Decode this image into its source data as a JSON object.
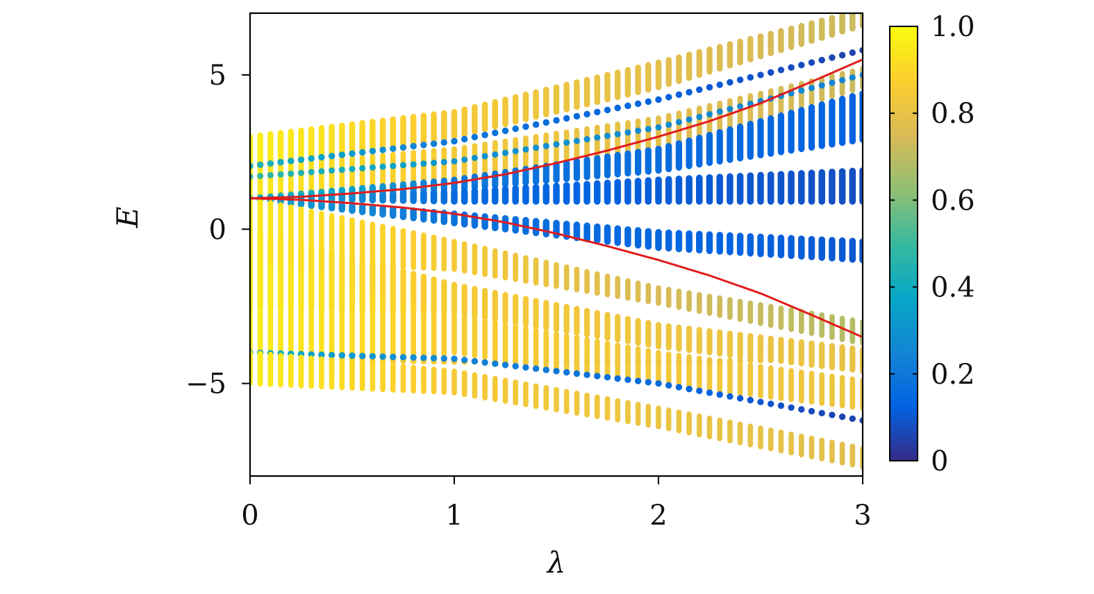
{
  "chart_data": {
    "type": "scatter",
    "xlabel": "λ",
    "ylabel": "E",
    "xlim": [
      0,
      3
    ],
    "ylim": [
      -8,
      7
    ],
    "x_ticks": [
      {
        "value": 0,
        "label": "0"
      },
      {
        "value": 1,
        "label": "1"
      },
      {
        "value": 2,
        "label": "2"
      },
      {
        "value": 3,
        "label": "3"
      }
    ],
    "y_ticks": [
      {
        "value": -5,
        "label": "−5"
      },
      {
        "value": 0,
        "label": "0"
      },
      {
        "value": 5,
        "label": "5"
      }
    ],
    "grid": false,
    "legend": "none",
    "colorbar": {
      "min": 0,
      "max": 1,
      "colormap": "parula",
      "colors": [
        "#352a87",
        "#0363e1",
        "#1485d4",
        "#06a7c6",
        "#38b99e",
        "#92bf73",
        "#d9ba56",
        "#fcce2e",
        "#f9fb0e"
      ],
      "ticks": [
        {
          "value": 0,
          "label": "0"
        },
        {
          "value": 0.2,
          "label": "0.2"
        },
        {
          "value": 0.4,
          "label": "0.4"
        },
        {
          "value": 0.6,
          "label": "0.6"
        },
        {
          "value": 0.8,
          "label": "0.8"
        },
        {
          "value": 1.0,
          "label": "1.0"
        }
      ]
    },
    "lambda_samples": 60,
    "bands": [
      {
        "lo": [
          [
            0,
            2.0
          ],
          [
            1,
            3.0
          ],
          [
            2,
            4.6
          ],
          [
            3,
            6.6
          ]
        ],
        "hi": [
          [
            0,
            3.0
          ],
          [
            1,
            3.8
          ],
          [
            2,
            5.4
          ],
          [
            3,
            7.1
          ]
        ],
        "c": [
          [
            0,
            0.97
          ],
          [
            1,
            0.85
          ],
          [
            3,
            0.72
          ]
        ],
        "fade": 1.0
      },
      {
        "lo": [
          [
            0,
            1.0
          ],
          [
            1,
            1.4
          ],
          [
            2,
            2.6
          ],
          [
            3,
            4.6
          ]
        ],
        "hi": [
          [
            0,
            2.0
          ],
          [
            1,
            2.6
          ],
          [
            2,
            3.6
          ],
          [
            3,
            5.2
          ]
        ],
        "c": [
          [
            0,
            0.95
          ],
          [
            1,
            0.85
          ],
          [
            3,
            0.72
          ]
        ],
        "fade": 1.5
      },
      {
        "lo": [
          [
            0,
            2.05
          ],
          [
            1,
            2.85
          ],
          [
            2,
            4.2
          ],
          [
            3,
            5.8
          ]
        ],
        "hi": [
          [
            0,
            2.05
          ],
          [
            1,
            2.85
          ],
          [
            2,
            4.2
          ],
          [
            3,
            5.8
          ]
        ],
        "c": [
          [
            0,
            0.45
          ],
          [
            1,
            0.2
          ],
          [
            3,
            0.05
          ]
        ],
        "fade": 0.35
      },
      {
        "lo": [
          [
            0,
            1.7
          ],
          [
            1,
            2.2
          ],
          [
            2,
            3.3
          ],
          [
            3,
            5.0
          ]
        ],
        "hi": [
          [
            0,
            1.7
          ],
          [
            1,
            2.2
          ],
          [
            2,
            3.3
          ],
          [
            3,
            5.0
          ]
        ],
        "c": [
          [
            0,
            0.5
          ],
          [
            1,
            0.3
          ],
          [
            3,
            0.25
          ]
        ],
        "fade": 0.6
      },
      {
        "lo": [
          [
            0,
            1.0
          ],
          [
            1,
            1.3
          ],
          [
            2,
            1.9
          ],
          [
            3,
            2.9
          ]
        ],
        "hi": [
          [
            0,
            1.0
          ],
          [
            1,
            1.6
          ],
          [
            2,
            2.6
          ],
          [
            3,
            4.4
          ]
        ],
        "c": [
          [
            0,
            0.5
          ],
          [
            1,
            0.2
          ],
          [
            3,
            0.12
          ]
        ],
        "fade": 0.5
      },
      {
        "lo": [
          [
            0,
            1.0
          ],
          [
            1,
            0.9
          ],
          [
            2,
            0.9
          ],
          [
            3,
            0.9
          ]
        ],
        "hi": [
          [
            0,
            1.0
          ],
          [
            1,
            1.2
          ],
          [
            2,
            1.6
          ],
          [
            3,
            1.9
          ]
        ],
        "c": [
          [
            0,
            0.4
          ],
          [
            1,
            0.15
          ],
          [
            3,
            0.08
          ]
        ],
        "fade": 0.3
      },
      {
        "lo": [
          [
            0,
            1.0
          ],
          [
            1,
            0.2
          ],
          [
            2,
            -0.6
          ],
          [
            3,
            -1.0
          ]
        ],
        "hi": [
          [
            0,
            1.0
          ],
          [
            1,
            0.5
          ],
          [
            2,
            -0.1
          ],
          [
            3,
            -0.4
          ]
        ],
        "c": [
          [
            0,
            0.35
          ],
          [
            1,
            0.18
          ],
          [
            3,
            0.1
          ]
        ],
        "fade": 0.35
      },
      {
        "lo": [
          [
            0,
            -1.0
          ],
          [
            1,
            -1.3
          ],
          [
            2,
            -2.4
          ],
          [
            3,
            -3.7
          ]
        ],
        "hi": [
          [
            0,
            1.0
          ],
          [
            1,
            -0.4
          ],
          [
            2,
            -1.9
          ],
          [
            3,
            -3.0
          ]
        ],
        "c": [
          [
            0,
            0.95
          ],
          [
            1,
            0.85
          ],
          [
            2,
            0.75
          ],
          [
            3,
            0.68
          ]
        ],
        "fade": 1.6
      },
      {
        "lo": [
          [
            0,
            -2.5
          ],
          [
            1,
            -2.7
          ],
          [
            2,
            -3.8
          ],
          [
            3,
            -4.6
          ]
        ],
        "hi": [
          [
            0,
            0.0
          ],
          [
            1,
            -1.8
          ],
          [
            2,
            -3.1
          ],
          [
            3,
            -3.9
          ]
        ],
        "c": [
          [
            0,
            0.95
          ],
          [
            1,
            0.85
          ],
          [
            3,
            0.8
          ]
        ],
        "fade": 1.2
      },
      {
        "lo": [
          [
            0,
            -5.0
          ],
          [
            1,
            -4.0
          ],
          [
            2,
            -5.0
          ],
          [
            3,
            -5.8
          ]
        ],
        "hi": [
          [
            0,
            -1.0
          ],
          [
            1,
            -2.8
          ],
          [
            2,
            -4.0
          ],
          [
            3,
            -4.9
          ]
        ],
        "c": [
          [
            0,
            0.96
          ],
          [
            1,
            0.86
          ],
          [
            3,
            0.82
          ]
        ],
        "fade": 1.6
      },
      {
        "lo": [
          [
            0,
            -4.2
          ],
          [
            1,
            -4.3
          ],
          [
            2,
            -4.3
          ],
          [
            3,
            -4.2
          ]
        ],
        "hi": [
          [
            0,
            -4.2
          ],
          [
            1,
            -4.3
          ],
          [
            2,
            -4.3
          ],
          [
            3,
            -4.2
          ]
        ],
        "c": [
          [
            0,
            0.9
          ],
          [
            1,
            0.85
          ],
          [
            3,
            0.8
          ]
        ],
        "fade": 1.0
      },
      {
        "lo": [
          [
            0,
            -4.0
          ],
          [
            1,
            -4.2
          ],
          [
            2,
            -5.0
          ],
          [
            3,
            -6.2
          ]
        ],
        "hi": [
          [
            0,
            -4.0
          ],
          [
            1,
            -4.2
          ],
          [
            2,
            -5.0
          ],
          [
            3,
            -6.2
          ]
        ],
        "c": [
          [
            0,
            0.4
          ],
          [
            1,
            0.25
          ],
          [
            3,
            0.05
          ]
        ],
        "fade": 0.4
      },
      {
        "lo": [
          [
            0,
            -5.0
          ],
          [
            1,
            -5.3
          ],
          [
            2,
            -6.4
          ],
          [
            3,
            -7.7
          ]
        ],
        "hi": [
          [
            0,
            -4.0
          ],
          [
            1,
            -4.6
          ],
          [
            2,
            -5.8
          ],
          [
            3,
            -7.1
          ]
        ],
        "c": [
          [
            0,
            0.96
          ],
          [
            1,
            0.85
          ],
          [
            3,
            0.78
          ]
        ],
        "fade": 1.6
      }
    ],
    "curves": [
      {
        "name": "",
        "color": "#e21b1b",
        "x": [
          0,
          0.25,
          0.5,
          0.75,
          1.0,
          1.25,
          1.5,
          1.75,
          2.0,
          2.25,
          2.5,
          2.75,
          3.0
        ],
        "y": [
          1.0,
          1.05,
          1.16,
          1.3,
          1.5,
          1.78,
          2.14,
          2.55,
          3.0,
          3.5,
          4.08,
          4.78,
          5.5
        ]
      },
      {
        "name": "",
        "color": "#e21b1b",
        "x": [
          0,
          0.25,
          0.5,
          0.75,
          1.0,
          1.25,
          1.5,
          1.75,
          2.0,
          2.25,
          2.5,
          2.75,
          3.0
        ],
        "y": [
          1.0,
          0.95,
          0.84,
          0.7,
          0.5,
          0.22,
          -0.14,
          -0.55,
          -1.0,
          -1.5,
          -2.08,
          -2.78,
          -3.5
        ]
      }
    ]
  }
}
